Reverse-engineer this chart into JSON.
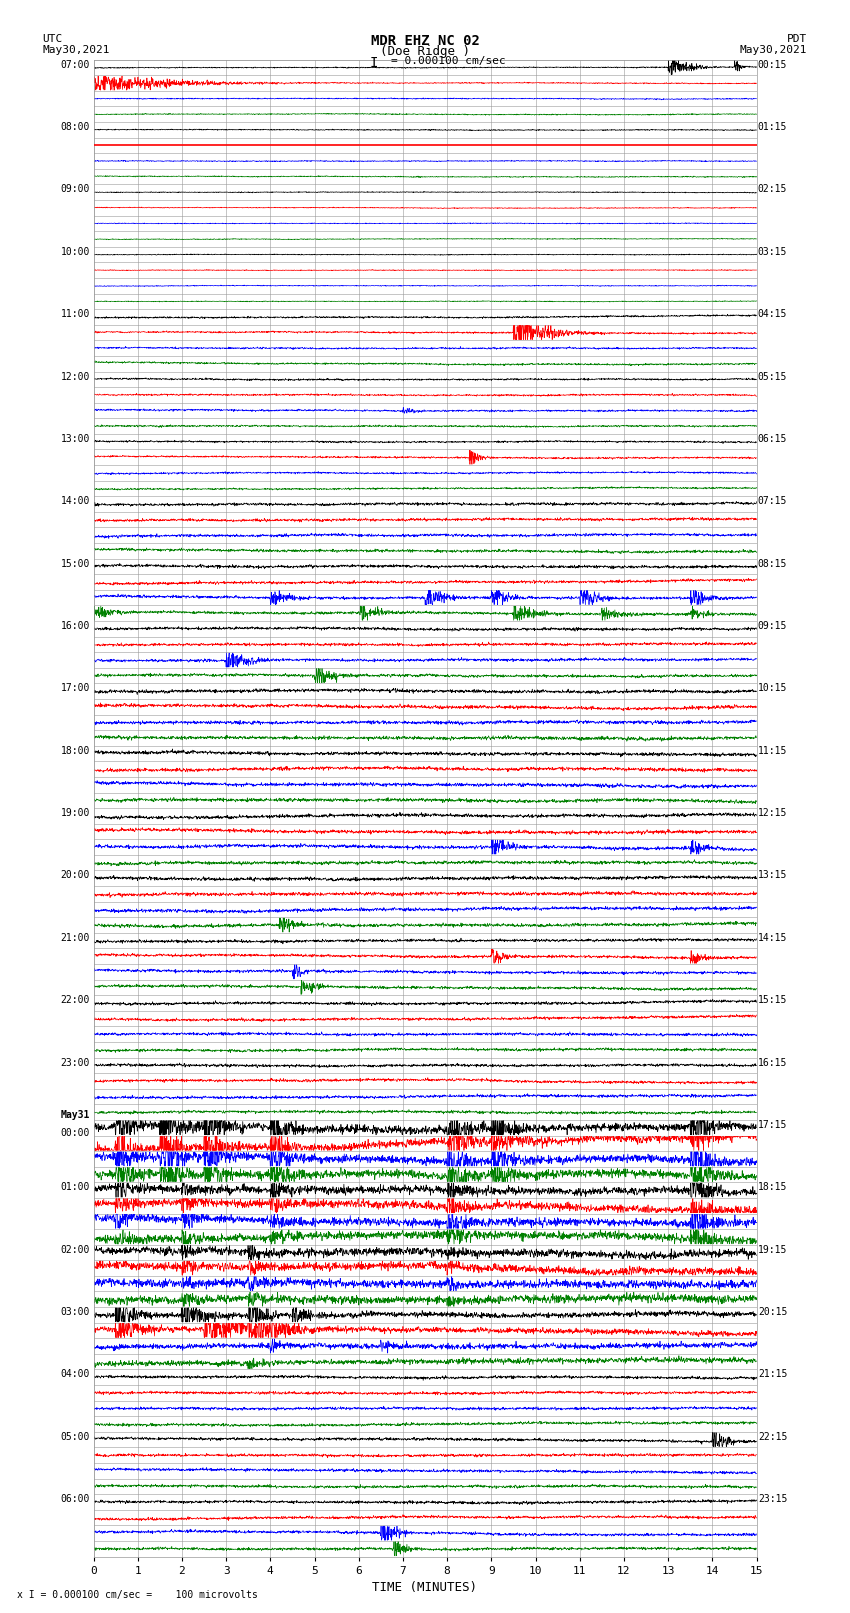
{
  "title_line1": "MDR EHZ NC 02",
  "title_line2": "(Doe Ridge )",
  "scale_label": "= 0.000100 cm/sec",
  "utc_label1": "UTC",
  "utc_label2": "May30,2021",
  "pdt_label1": "PDT",
  "pdt_label2": "May30,2021",
  "xlabel": "TIME (MINUTES)",
  "footnote": "x I = 0.000100 cm/sec =    100 microvolts",
  "x_min": 0,
  "x_max": 15,
  "background_color": "#ffffff",
  "grid_color": "#aaaaaa",
  "trace_colors": [
    "#000000",
    "#ff0000",
    "#0000ff",
    "#008000"
  ],
  "figsize": [
    8.5,
    16.13
  ],
  "dpi": 100,
  "n_rows": 96,
  "left_labels": [
    "07:00",
    "",
    "",
    "",
    "08:00",
    "",
    "",
    "",
    "09:00",
    "",
    "",
    "",
    "10:00",
    "",
    "",
    "",
    "11:00",
    "",
    "",
    "",
    "12:00",
    "",
    "",
    "",
    "13:00",
    "",
    "",
    "",
    "14:00",
    "",
    "",
    "",
    "15:00",
    "",
    "",
    "",
    "16:00",
    "",
    "",
    "",
    "17:00",
    "",
    "",
    "",
    "18:00",
    "",
    "",
    "",
    "19:00",
    "",
    "",
    "",
    "20:00",
    "",
    "",
    "",
    "21:00",
    "",
    "",
    "",
    "22:00",
    "",
    "",
    "",
    "23:00",
    "",
    "",
    "",
    "May31\n00:00",
    "",
    "",
    "",
    "01:00",
    "",
    "",
    "",
    "02:00",
    "",
    "",
    "",
    "03:00",
    "",
    "",
    "",
    "04:00",
    "",
    "",
    "",
    "05:00",
    "",
    "",
    "",
    "06:00",
    "",
    "",
    ""
  ],
  "right_labels": [
    "00:15",
    "",
    "",
    "",
    "01:15",
    "",
    "",
    "",
    "02:15",
    "",
    "",
    "",
    "03:15",
    "",
    "",
    "",
    "04:15",
    "",
    "",
    "",
    "05:15",
    "",
    "",
    "",
    "06:15",
    "",
    "",
    "",
    "07:15",
    "",
    "",
    "",
    "08:15",
    "",
    "",
    "",
    "09:15",
    "",
    "",
    "",
    "10:15",
    "",
    "",
    "",
    "11:15",
    "",
    "",
    "",
    "12:15",
    "",
    "",
    "",
    "13:15",
    "",
    "",
    "",
    "14:15",
    "",
    "",
    "",
    "15:15",
    "",
    "",
    "",
    "16:15",
    "",
    "",
    "",
    "17:15",
    "",
    "",
    "",
    "18:15",
    "",
    "",
    "",
    "19:15",
    "",
    "",
    "",
    "20:15",
    "",
    "",
    "",
    "21:15",
    "",
    "",
    "",
    "22:15",
    "",
    "",
    "",
    "23:15",
    "",
    "",
    ""
  ]
}
